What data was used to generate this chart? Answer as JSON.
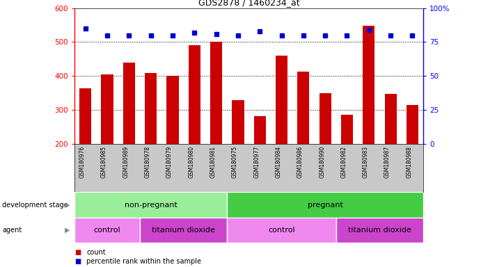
{
  "title": "GDS2878 / 1460234_at",
  "samples": [
    "GSM180976",
    "GSM180985",
    "GSM180989",
    "GSM180978",
    "GSM180979",
    "GSM180980",
    "GSM180981",
    "GSM180975",
    "GSM180977",
    "GSM180984",
    "GSM180986",
    "GSM180990",
    "GSM180982",
    "GSM180983",
    "GSM180987",
    "GSM180988"
  ],
  "counts": [
    365,
    405,
    440,
    410,
    400,
    490,
    500,
    330,
    283,
    460,
    413,
    349,
    287,
    548,
    347,
    315
  ],
  "percentiles": [
    85,
    80,
    80,
    80,
    80,
    82,
    81,
    80,
    83,
    80,
    80,
    80,
    80,
    84,
    80,
    80
  ],
  "ymin": 200,
  "ymax": 600,
  "yticks": [
    200,
    300,
    400,
    500,
    600
  ],
  "y2ticks": [
    0,
    25,
    50,
    75,
    100
  ],
  "y2labels": [
    "0",
    "25",
    "50",
    "75",
    "100%"
  ],
  "bar_color": "#cc0000",
  "dot_color": "#0000cc",
  "tick_area_color": "#c8c8c8",
  "dev_stage_nonpreg_color": "#99ee99",
  "dev_stage_preg_color": "#44cc44",
  "agent_control_color": "#ee88ee",
  "agent_tio2_color": "#cc44cc",
  "dev_stage_row": {
    "label": "development stage",
    "segments": [
      {
        "text": "non-pregnant",
        "start": 0,
        "end": 7,
        "color": "#99ee99"
      },
      {
        "text": "pregnant",
        "start": 7,
        "end": 16,
        "color": "#44cc44"
      }
    ]
  },
  "agent_row": {
    "label": "agent",
    "segments": [
      {
        "text": "control",
        "start": 0,
        "end": 3,
        "color": "#ee88ee"
      },
      {
        "text": "titanium dioxide",
        "start": 3,
        "end": 7,
        "color": "#cc44cc"
      },
      {
        "text": "control",
        "start": 7,
        "end": 12,
        "color": "#ee88ee"
      },
      {
        "text": "titanium dioxide",
        "start": 12,
        "end": 16,
        "color": "#cc44cc"
      }
    ]
  }
}
